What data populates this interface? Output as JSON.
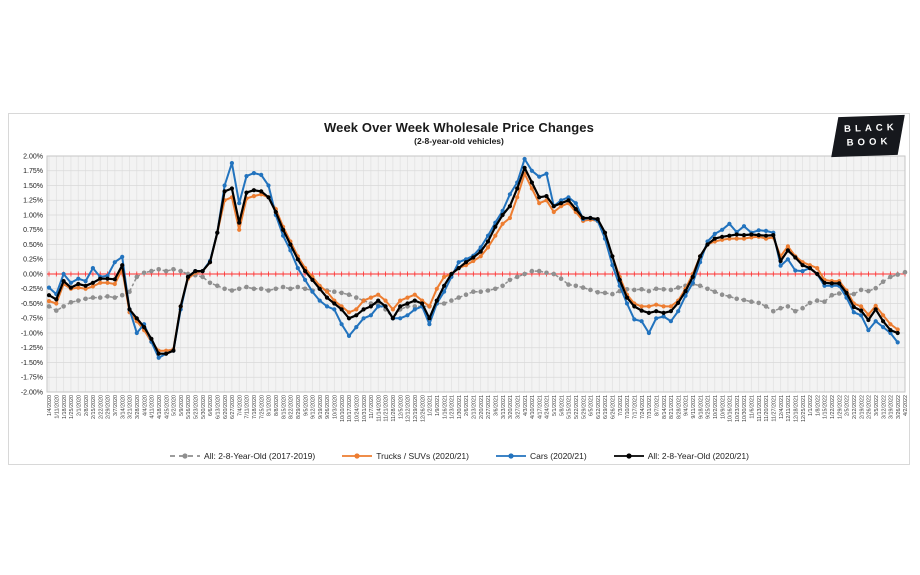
{
  "logo": {
    "line1": "BLACK",
    "line2": "BOOK"
  },
  "colors": {
    "gray_series": "#8f8f8f",
    "orange_series": "#ED7D31",
    "blue_series": "#2273BE",
    "black_series": "#000000",
    "zero_line": "#FF2E2E"
  },
  "chart_data": {
    "type": "line",
    "title": "Week Over Week Wholesale Price Changes",
    "subtitle": "(2-8-year-old vehicles)",
    "ylabel": "",
    "xlabel": "",
    "ylim": [
      -2.0,
      2.0
    ],
    "grid": true,
    "legend_position": "bottom",
    "zero_line": true,
    "y_tick_labels": [
      "2.00%",
      "1.75%",
      "1.50%",
      "1.25%",
      "1.00%",
      "0.75%",
      "0.50%",
      "0.25%",
      "0.00%",
      "-0.25%",
      "-0.50%",
      "-0.75%",
      "-1.00%",
      "-1.25%",
      "-1.50%",
      "-1.75%",
      "-2.00%"
    ],
    "x": [
      "1/4/2020",
      "1/11/2020",
      "1/18/2020",
      "1/25/2020",
      "2/1/2020",
      "2/8/2020",
      "2/15/2020",
      "2/22/2020",
      "2/29/2020",
      "3/7/2020",
      "3/14/2020",
      "3/21/2020",
      "3/28/2020",
      "4/4/2020",
      "4/11/2020",
      "4/18/2020",
      "4/25/2020",
      "5/2/2020",
      "5/9/2020",
      "5/16/2020",
      "5/23/2020",
      "5/30/2020",
      "6/6/2020",
      "6/13/2020",
      "6/20/2020",
      "6/27/2020",
      "7/4/2020",
      "7/11/2020",
      "7/18/2020",
      "7/25/2020",
      "8/1/2020",
      "8/8/2020",
      "8/15/2020",
      "8/22/2020",
      "8/29/2020",
      "9/5/2020",
      "9/12/2020",
      "9/19/2020",
      "9/26/2020",
      "10/3/2020",
      "10/10/2020",
      "10/17/2020",
      "10/24/2020",
      "10/31/2020",
      "11/7/2020",
      "11/14/2020",
      "11/21/2020",
      "11/28/2020",
      "12/5/2020",
      "12/12/2020",
      "12/19/2020",
      "12/26/2020",
      "1/2/2021",
      "1/9/2021",
      "1/16/2021",
      "1/23/2021",
      "1/30/2021",
      "2/6/2021",
      "2/13/2021",
      "2/20/2021",
      "2/27/2021",
      "3/6/2021",
      "3/13/2021",
      "3/20/2021",
      "3/27/2021",
      "4/3/2021",
      "4/10/2021",
      "4/17/2021",
      "4/24/2021",
      "5/1/2021",
      "5/8/2021",
      "5/15/2021",
      "5/22/2021",
      "5/29/2021",
      "6/5/2021",
      "6/12/2021",
      "6/19/2021",
      "6/26/2021",
      "7/3/2021",
      "7/10/2021",
      "7/17/2021",
      "7/24/2021",
      "7/31/2021",
      "8/7/2021",
      "8/14/2021",
      "8/21/2021",
      "8/28/2021",
      "9/4/2021",
      "9/11/2021",
      "9/18/2021",
      "9/25/2021",
      "10/2/2021",
      "10/9/2021",
      "10/16/2021",
      "10/23/2021",
      "10/30/2021",
      "11/6/2021",
      "11/13/2021",
      "11/20/2021",
      "11/27/2021",
      "12/4/2021",
      "12/11/2021",
      "12/18/2021",
      "12/25/2021",
      "1/1/2022",
      "1/8/2022",
      "1/15/2022",
      "1/22/2022",
      "1/29/2022",
      "2/5/2022",
      "2/12/2022",
      "2/19/2022",
      "2/26/2022",
      "3/5/2022",
      "3/12/2022",
      "3/19/2022",
      "3/26/2022",
      "4/2/2022"
    ],
    "series": [
      {
        "id": "all-2017-2019",
        "name": "All: 2-8-Year-Old (2017-2019)",
        "color": "#8f8f8f",
        "style": "dashed-dot",
        "values": [
          -0.55,
          -0.62,
          -0.55,
          -0.48,
          -0.45,
          -0.42,
          -0.4,
          -0.4,
          -0.38,
          -0.4,
          -0.36,
          -0.3,
          -0.05,
          0.02,
          0.05,
          0.08,
          0.05,
          0.08,
          0.05,
          0.0,
          -0.02,
          -0.05,
          -0.15,
          -0.2,
          -0.25,
          -0.28,
          -0.25,
          -0.22,
          -0.25,
          -0.25,
          -0.28,
          -0.25,
          -0.22,
          -0.25,
          -0.22,
          -0.25,
          -0.28,
          -0.25,
          -0.28,
          -0.3,
          -0.32,
          -0.35,
          -0.4,
          -0.45,
          -0.5,
          -0.52,
          -0.6,
          -0.75,
          -0.6,
          -0.55,
          -0.55,
          -0.55,
          -0.55,
          -0.5,
          -0.5,
          -0.45,
          -0.4,
          -0.35,
          -0.3,
          -0.3,
          -0.28,
          -0.25,
          -0.2,
          -0.1,
          -0.05,
          0.0,
          0.05,
          0.05,
          0.02,
          0.0,
          -0.08,
          -0.18,
          -0.2,
          -0.23,
          -0.27,
          -0.31,
          -0.32,
          -0.34,
          -0.29,
          -0.26,
          -0.27,
          -0.26,
          -0.29,
          -0.25,
          -0.26,
          -0.27,
          -0.23,
          -0.2,
          -0.17,
          -0.2,
          -0.25,
          -0.3,
          -0.35,
          -0.38,
          -0.42,
          -0.44,
          -0.47,
          -0.49,
          -0.55,
          -0.63,
          -0.58,
          -0.55,
          -0.63,
          -0.58,
          -0.49,
          -0.45,
          -0.47,
          -0.36,
          -0.33,
          -0.34,
          -0.34,
          -0.27,
          -0.29,
          -0.24,
          -0.13,
          -0.05,
          -0.01,
          0.03
        ]
      },
      {
        "id": "trucks-suvs-2020-21",
        "name": "Trucks / SUVs (2020/21)",
        "color": "#ED7D31",
        "style": "line-dot",
        "values": [
          -0.46,
          -0.5,
          -0.17,
          -0.25,
          -0.23,
          -0.25,
          -0.21,
          -0.15,
          -0.15,
          -0.17,
          0.08,
          -0.65,
          -0.8,
          -0.95,
          -1.15,
          -1.3,
          -1.3,
          -1.28,
          -0.55,
          -0.08,
          0.02,
          0.05,
          0.2,
          0.7,
          1.25,
          1.3,
          0.75,
          1.28,
          1.32,
          1.35,
          1.3,
          1.1,
          0.8,
          0.55,
          0.3,
          0.1,
          -0.05,
          -0.2,
          -0.3,
          -0.45,
          -0.55,
          -0.65,
          -0.6,
          -0.45,
          -0.4,
          -0.35,
          -0.45,
          -0.6,
          -0.45,
          -0.4,
          -0.35,
          -0.45,
          -0.55,
          -0.25,
          -0.05,
          0.0,
          0.1,
          0.15,
          0.22,
          0.3,
          0.45,
          0.65,
          0.85,
          0.95,
          1.3,
          1.7,
          1.45,
          1.2,
          1.25,
          1.05,
          1.15,
          1.2,
          1.05,
          0.9,
          0.92,
          0.9,
          0.65,
          0.3,
          -0.05,
          -0.35,
          -0.5,
          -0.55,
          -0.55,
          -0.52,
          -0.55,
          -0.55,
          -0.45,
          -0.25,
          0.0,
          0.3,
          0.5,
          0.55,
          0.58,
          0.6,
          0.6,
          0.6,
          0.62,
          0.63,
          0.6,
          0.62,
          0.3,
          0.47,
          0.3,
          0.2,
          0.15,
          0.1,
          -0.1,
          -0.12,
          -0.12,
          -0.28,
          -0.5,
          -0.55,
          -0.69,
          -0.54,
          -0.7,
          -0.85,
          -0.94,
          null
        ]
      },
      {
        "id": "cars-2020-21",
        "name": "Cars (2020/21)",
        "color": "#2273BE",
        "style": "line-dot",
        "values": [
          -0.23,
          -0.34,
          0.0,
          -0.15,
          -0.08,
          -0.12,
          0.1,
          -0.05,
          -0.03,
          0.2,
          0.29,
          -0.6,
          -1.0,
          -0.85,
          -1.15,
          -1.42,
          -1.35,
          -1.3,
          -0.6,
          -0.05,
          0.05,
          0.05,
          0.22,
          0.7,
          1.5,
          1.88,
          1.2,
          1.66,
          1.71,
          1.68,
          1.5,
          1.0,
          0.65,
          0.4,
          0.1,
          -0.1,
          -0.3,
          -0.45,
          -0.55,
          -0.6,
          -0.85,
          -1.05,
          -0.9,
          -0.75,
          -0.7,
          -0.55,
          -0.55,
          -0.75,
          -0.75,
          -0.7,
          -0.6,
          -0.55,
          -0.85,
          -0.5,
          -0.3,
          -0.05,
          0.2,
          0.25,
          0.31,
          0.45,
          0.65,
          0.87,
          1.07,
          1.35,
          1.55,
          1.95,
          1.75,
          1.65,
          1.7,
          1.15,
          1.25,
          1.3,
          1.2,
          0.93,
          0.95,
          0.9,
          0.6,
          0.15,
          -0.2,
          -0.5,
          -0.77,
          -0.8,
          -1.0,
          -0.75,
          -0.72,
          -0.8,
          -0.63,
          -0.37,
          -0.15,
          0.2,
          0.55,
          0.68,
          0.75,
          0.85,
          0.71,
          0.81,
          0.7,
          0.74,
          0.73,
          0.7,
          0.14,
          0.25,
          0.06,
          0.05,
          0.1,
          0.0,
          -0.2,
          -0.2,
          -0.2,
          -0.4,
          -0.65,
          -0.7,
          -0.95,
          -0.8,
          -0.9,
          -1.0,
          -1.16,
          null
        ]
      },
      {
        "id": "all-2020-21",
        "name": "All: 2-8-Year-Old (2020/21)",
        "color": "#000000",
        "style": "line-dot",
        "values": [
          -0.36,
          -0.43,
          -0.12,
          -0.23,
          -0.17,
          -0.2,
          -0.15,
          -0.08,
          -0.08,
          -0.09,
          0.15,
          -0.6,
          -0.75,
          -0.9,
          -1.1,
          -1.35,
          -1.35,
          -1.3,
          -0.55,
          -0.05,
          0.05,
          0.05,
          0.2,
          0.7,
          1.4,
          1.45,
          0.87,
          1.38,
          1.42,
          1.4,
          1.3,
          1.05,
          0.75,
          0.5,
          0.25,
          0.05,
          -0.1,
          -0.25,
          -0.4,
          -0.5,
          -0.6,
          -0.75,
          -0.7,
          -0.6,
          -0.55,
          -0.45,
          -0.55,
          -0.75,
          -0.55,
          -0.5,
          -0.45,
          -0.5,
          -0.75,
          -0.45,
          -0.2,
          0.0,
          0.1,
          0.2,
          0.28,
          0.38,
          0.55,
          0.8,
          1.0,
          1.15,
          1.45,
          1.8,
          1.55,
          1.3,
          1.32,
          1.15,
          1.2,
          1.25,
          1.1,
          0.95,
          0.95,
          0.93,
          0.7,
          0.3,
          -0.1,
          -0.4,
          -0.55,
          -0.62,
          -0.66,
          -0.63,
          -0.66,
          -0.63,
          -0.49,
          -0.29,
          -0.05,
          0.3,
          0.5,
          0.6,
          0.63,
          0.65,
          0.67,
          0.66,
          0.67,
          0.66,
          0.65,
          0.66,
          0.22,
          0.4,
          0.28,
          0.15,
          0.1,
          0.0,
          -0.15,
          -0.16,
          -0.16,
          -0.32,
          -0.56,
          -0.62,
          -0.78,
          -0.6,
          -0.8,
          -0.95,
          -1.0,
          null
        ]
      }
    ]
  }
}
